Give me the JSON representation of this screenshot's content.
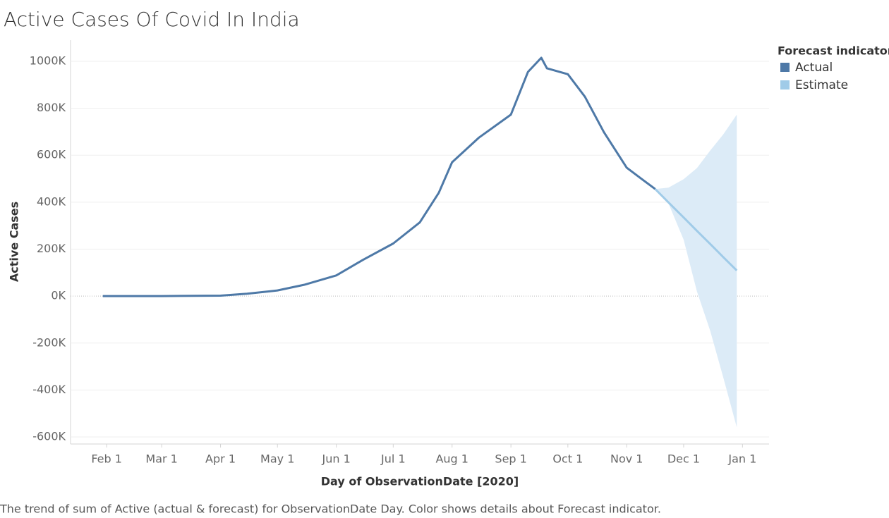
{
  "chart_data": {
    "type": "line",
    "title": "Active Cases Of Covid In India",
    "x_label": "Day of ObservationDate [2020]",
    "y_label": "Active Cases",
    "caption": "The trend of sum of Active (actual & forecast)  for ObservationDate Day.  Color shows details about Forecast indicator.",
    "legend_title": "Forecast indicator",
    "legend_position": "right",
    "grid": true,
    "xlim": [
      "2020-01-13",
      "2021-01-15"
    ],
    "xticks": [
      {
        "value": "2020-02-01",
        "label": "Feb 1"
      },
      {
        "value": "2020-03-01",
        "label": "Mar 1"
      },
      {
        "value": "2020-04-01",
        "label": "Apr 1"
      },
      {
        "value": "2020-05-01",
        "label": "May 1"
      },
      {
        "value": "2020-06-01",
        "label": "Jun 1"
      },
      {
        "value": "2020-07-01",
        "label": "Jul 1"
      },
      {
        "value": "2020-08-01",
        "label": "Aug 1"
      },
      {
        "value": "2020-09-01",
        "label": "Sep 1"
      },
      {
        "value": "2020-10-01",
        "label": "Oct 1"
      },
      {
        "value": "2020-11-01",
        "label": "Nov 1"
      },
      {
        "value": "2020-12-01",
        "label": "Dec 1"
      },
      {
        "value": "2021-01-01",
        "label": "Jan 1"
      }
    ],
    "ylim": [
      -630000,
      1090000
    ],
    "yticks": [
      {
        "value": -600000,
        "label": "-600K"
      },
      {
        "value": -400000,
        "label": "-400K"
      },
      {
        "value": -200000,
        "label": "-200K"
      },
      {
        "value": 0,
        "label": "0K"
      },
      {
        "value": 200000,
        "label": "200K"
      },
      {
        "value": 400000,
        "label": "400K"
      },
      {
        "value": 600000,
        "label": "600K"
      },
      {
        "value": 800000,
        "label": "800K"
      },
      {
        "value": 1000000,
        "label": "1000K"
      }
    ],
    "series": [
      {
        "name": "Actual",
        "color": "#4e79a7",
        "x": [
          "2020-01-30",
          "2020-03-01",
          "2020-04-01",
          "2020-04-15",
          "2020-05-01",
          "2020-05-15",
          "2020-06-01",
          "2020-06-15",
          "2020-07-01",
          "2020-07-15",
          "2020-07-25",
          "2020-08-01",
          "2020-08-15",
          "2020-09-01",
          "2020-09-10",
          "2020-09-17",
          "2020-09-20",
          "2020-10-01",
          "2020-10-10",
          "2020-10-20",
          "2020-11-01",
          "2020-11-10",
          "2020-11-16"
        ],
        "values": [
          0,
          0,
          2000,
          10000,
          24000,
          48000,
          88000,
          154000,
          224000,
          314000,
          440000,
          570000,
          674000,
          773000,
          955000,
          1015000,
          970000,
          945000,
          849000,
          698000,
          547000,
          492000,
          456000
        ]
      },
      {
        "name": "Estimate",
        "color": "#a0cbe8",
        "band_color": "#dcebf7",
        "x": [
          "2020-11-16",
          "2020-11-23",
          "2020-12-01",
          "2020-12-08",
          "2020-12-15",
          "2020-12-22",
          "2020-12-29"
        ],
        "values": [
          456000,
          399000,
          335000,
          278000,
          222000,
          165000,
          109000
        ],
        "upper": [
          456000,
          462000,
          498000,
          545000,
          620000,
          690000,
          773000
        ],
        "lower": [
          456000,
          395000,
          240000,
          20000,
          -148000,
          -350000,
          -559000
        ]
      }
    ]
  }
}
